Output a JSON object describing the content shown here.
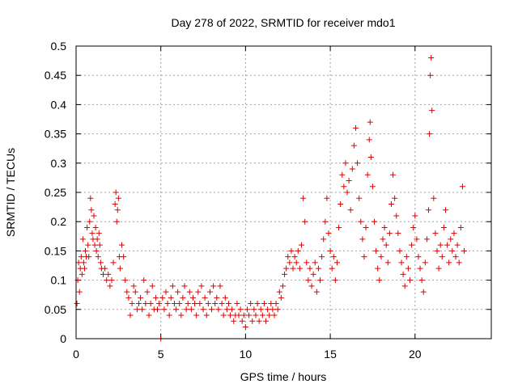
{
  "chart_data": {
    "type": "scatter",
    "title": "Day 278 of 2022, SRMTID for receiver mdo1",
    "xlabel": "GPS time / hours",
    "ylabel": "SRMTID / TECUs",
    "xlim": [
      0,
      24.5
    ],
    "ylim": [
      0,
      0.5
    ],
    "xticks": [
      0,
      5,
      10,
      15,
      20
    ],
    "xtick_labels": [
      "0",
      "5",
      "10",
      "15",
      "20"
    ],
    "yticks": [
      0,
      0.05,
      0.1,
      0.15,
      0.2,
      0.25,
      0.3,
      0.35,
      0.4,
      0.45,
      0.5
    ],
    "ytick_labels": [
      "0",
      "0.05",
      "0.1",
      "0.15",
      "0.2",
      "0.25",
      "0.3",
      "0.35",
      "0.4",
      "0.45",
      "0.5"
    ],
    "grid": true,
    "marker": "+",
    "color": "#e00000",
    "series": [
      {
        "name": "SRMTID",
        "points": [
          [
            0.05,
            0.06
          ],
          [
            0.1,
            0.1
          ],
          [
            0.15,
            0.13
          ],
          [
            0.2,
            0.08
          ],
          [
            0.25,
            0.12
          ],
          [
            0.3,
            0.14
          ],
          [
            0.35,
            0.11
          ],
          [
            0.4,
            0.17
          ],
          [
            0.45,
            0.13
          ],
          [
            0.5,
            0.12
          ],
          [
            0.55,
            0.15
          ],
          [
            0.6,
            0.14
          ],
          [
            0.65,
            0.19
          ],
          [
            0.7,
            0.16
          ],
          [
            0.75,
            0.14
          ],
          [
            0.8,
            0.2
          ],
          [
            0.85,
            0.24
          ],
          [
            0.9,
            0.22
          ],
          [
            0.95,
            0.18
          ],
          [
            1.0,
            0.17
          ],
          [
            1.05,
            0.21
          ],
          [
            1.1,
            0.16
          ],
          [
            1.15,
            0.19
          ],
          [
            1.2,
            0.15
          ],
          [
            1.25,
            0.17
          ],
          [
            1.3,
            0.14
          ],
          [
            1.35,
            0.18
          ],
          [
            1.4,
            0.16
          ],
          [
            1.45,
            0.13
          ],
          [
            1.5,
            0.12
          ],
          [
            1.6,
            0.11
          ],
          [
            1.7,
            0.12
          ],
          [
            1.8,
            0.1
          ],
          [
            1.9,
            0.11
          ],
          [
            2.0,
            0.09
          ],
          [
            2.1,
            0.1
          ],
          [
            2.2,
            0.13
          ],
          [
            2.3,
            0.23
          ],
          [
            2.35,
            0.25
          ],
          [
            2.4,
            0.2
          ],
          [
            2.45,
            0.22
          ],
          [
            2.5,
            0.24
          ],
          [
            2.55,
            0.14
          ],
          [
            2.6,
            0.12
          ],
          [
            2.7,
            0.16
          ],
          [
            2.8,
            0.14
          ],
          [
            2.9,
            0.1
          ],
          [
            3.0,
            0.08
          ],
          [
            3.1,
            0.07
          ],
          [
            3.2,
            0.04
          ],
          [
            3.3,
            0.06
          ],
          [
            3.4,
            0.09
          ],
          [
            3.5,
            0.08
          ],
          [
            3.6,
            0.05
          ],
          [
            3.7,
            0.06
          ],
          [
            3.8,
            0.07
          ],
          [
            3.9,
            0.05
          ],
          [
            4.0,
            0.1
          ],
          [
            4.1,
            0.06
          ],
          [
            4.2,
            0.08
          ],
          [
            4.3,
            0.04
          ],
          [
            4.4,
            0.06
          ],
          [
            4.5,
            0.09
          ],
          [
            4.6,
            0.05
          ],
          [
            4.7,
            0.07
          ],
          [
            4.8,
            0.05
          ],
          [
            4.9,
            0.06
          ],
          [
            5.0,
            0.0
          ],
          [
            5.1,
            0.07
          ],
          [
            5.2,
            0.05
          ],
          [
            5.3,
            0.08
          ],
          [
            5.4,
            0.06
          ],
          [
            5.5,
            0.04
          ],
          [
            5.6,
            0.07
          ],
          [
            5.7,
            0.09
          ],
          [
            5.8,
            0.06
          ],
          [
            5.9,
            0.05
          ],
          [
            6.0,
            0.08
          ],
          [
            6.1,
            0.06
          ],
          [
            6.2,
            0.04
          ],
          [
            6.3,
            0.07
          ],
          [
            6.4,
            0.09
          ],
          [
            6.5,
            0.05
          ],
          [
            6.6,
            0.06
          ],
          [
            6.7,
            0.08
          ],
          [
            6.8,
            0.05
          ],
          [
            6.9,
            0.07
          ],
          [
            7.0,
            0.06
          ],
          [
            7.1,
            0.04
          ],
          [
            7.2,
            0.08
          ],
          [
            7.3,
            0.06
          ],
          [
            7.4,
            0.09
          ],
          [
            7.5,
            0.05
          ],
          [
            7.6,
            0.07
          ],
          [
            7.7,
            0.04
          ],
          [
            7.8,
            0.06
          ],
          [
            7.9,
            0.08
          ],
          [
            8.0,
            0.05
          ],
          [
            8.1,
            0.09
          ],
          [
            8.2,
            0.06
          ],
          [
            8.3,
            0.07
          ],
          [
            8.4,
            0.05
          ],
          [
            8.5,
            0.09
          ],
          [
            8.6,
            0.06
          ],
          [
            8.7,
            0.04
          ],
          [
            8.8,
            0.07
          ],
          [
            8.9,
            0.05
          ],
          [
            9.0,
            0.06
          ],
          [
            9.1,
            0.04
          ],
          [
            9.2,
            0.05
          ],
          [
            9.3,
            0.03
          ],
          [
            9.4,
            0.04
          ],
          [
            9.5,
            0.06
          ],
          [
            9.6,
            0.04
          ],
          [
            9.7,
            0.05
          ],
          [
            9.8,
            0.03
          ],
          [
            9.9,
            0.04
          ],
          [
            10.0,
            0.02
          ],
          [
            10.1,
            0.05
          ],
          [
            10.2,
            0.04
          ],
          [
            10.3,
            0.06
          ],
          [
            10.4,
            0.03
          ],
          [
            10.5,
            0.05
          ],
          [
            10.6,
            0.04
          ],
          [
            10.7,
            0.06
          ],
          [
            10.8,
            0.03
          ],
          [
            10.9,
            0.05
          ],
          [
            11.0,
            0.04
          ],
          [
            11.1,
            0.06
          ],
          [
            11.2,
            0.03
          ],
          [
            11.3,
            0.05
          ],
          [
            11.4,
            0.04
          ],
          [
            11.5,
            0.06
          ],
          [
            11.6,
            0.05
          ],
          [
            11.7,
            0.04
          ],
          [
            11.8,
            0.06
          ],
          [
            11.9,
            0.05
          ],
          [
            12.0,
            0.08
          ],
          [
            12.1,
            0.07
          ],
          [
            12.2,
            0.09
          ],
          [
            12.3,
            0.11
          ],
          [
            12.4,
            0.12
          ],
          [
            12.5,
            0.14
          ],
          [
            12.6,
            0.13
          ],
          [
            12.7,
            0.15
          ],
          [
            12.8,
            0.12
          ],
          [
            12.9,
            0.14
          ],
          [
            13.0,
            0.13
          ],
          [
            13.1,
            0.15
          ],
          [
            13.2,
            0.12
          ],
          [
            13.3,
            0.16
          ],
          [
            13.4,
            0.24
          ],
          [
            13.5,
            0.2
          ],
          [
            13.6,
            0.13
          ],
          [
            13.7,
            0.1
          ],
          [
            13.8,
            0.12
          ],
          [
            13.9,
            0.09
          ],
          [
            14.0,
            0.11
          ],
          [
            14.1,
            0.13
          ],
          [
            14.2,
            0.08
          ],
          [
            14.3,
            0.12
          ],
          [
            14.4,
            0.1
          ],
          [
            14.5,
            0.14
          ],
          [
            14.6,
            0.17
          ],
          [
            14.7,
            0.2
          ],
          [
            14.8,
            0.24
          ],
          [
            14.9,
            0.18
          ],
          [
            15.0,
            0.15
          ],
          [
            15.1,
            0.12
          ],
          [
            15.2,
            0.14
          ],
          [
            15.3,
            0.1
          ],
          [
            15.4,
            0.13
          ],
          [
            15.5,
            0.19
          ],
          [
            15.6,
            0.23
          ],
          [
            15.7,
            0.28
          ],
          [
            15.8,
            0.26
          ],
          [
            15.9,
            0.3
          ],
          [
            16.0,
            0.25
          ],
          [
            16.1,
            0.27
          ],
          [
            16.2,
            0.22
          ],
          [
            16.3,
            0.29
          ],
          [
            16.4,
            0.33
          ],
          [
            16.5,
            0.36
          ],
          [
            16.6,
            0.3
          ],
          [
            16.7,
            0.24
          ],
          [
            16.8,
            0.2
          ],
          [
            16.9,
            0.17
          ],
          [
            17.0,
            0.14
          ],
          [
            17.1,
            0.19
          ],
          [
            17.2,
            0.28
          ],
          [
            17.3,
            0.34
          ],
          [
            17.35,
            0.37
          ],
          [
            17.4,
            0.31
          ],
          [
            17.5,
            0.26
          ],
          [
            17.6,
            0.2
          ],
          [
            17.7,
            0.15
          ],
          [
            17.8,
            0.12
          ],
          [
            17.9,
            0.1
          ],
          [
            18.0,
            0.14
          ],
          [
            18.1,
            0.17
          ],
          [
            18.2,
            0.19
          ],
          [
            18.3,
            0.16
          ],
          [
            18.4,
            0.13
          ],
          [
            18.5,
            0.18
          ],
          [
            18.6,
            0.23
          ],
          [
            18.7,
            0.28
          ],
          [
            18.8,
            0.24
          ],
          [
            18.9,
            0.21
          ],
          [
            19.0,
            0.18
          ],
          [
            19.1,
            0.15
          ],
          [
            19.2,
            0.13
          ],
          [
            19.3,
            0.11
          ],
          [
            19.4,
            0.09
          ],
          [
            19.5,
            0.14
          ],
          [
            19.6,
            0.12
          ],
          [
            19.7,
            0.1
          ],
          [
            19.8,
            0.16
          ],
          [
            19.9,
            0.19
          ],
          [
            20.0,
            0.21
          ],
          [
            20.1,
            0.17
          ],
          [
            20.2,
            0.14
          ],
          [
            20.3,
            0.12
          ],
          [
            20.4,
            0.1
          ],
          [
            20.5,
            0.08
          ],
          [
            20.6,
            0.13
          ],
          [
            20.7,
            0.17
          ],
          [
            20.8,
            0.22
          ],
          [
            20.85,
            0.35
          ],
          [
            20.9,
            0.45
          ],
          [
            20.95,
            0.48
          ],
          [
            21.0,
            0.39
          ],
          [
            21.1,
            0.24
          ],
          [
            21.2,
            0.18
          ],
          [
            21.3,
            0.15
          ],
          [
            21.4,
            0.12
          ],
          [
            21.5,
            0.16
          ],
          [
            21.6,
            0.14
          ],
          [
            21.7,
            0.19
          ],
          [
            21.8,
            0.22
          ],
          [
            21.9,
            0.16
          ],
          [
            22.0,
            0.13
          ],
          [
            22.1,
            0.17
          ],
          [
            22.2,
            0.15
          ],
          [
            22.3,
            0.18
          ],
          [
            22.4,
            0.14
          ],
          [
            22.5,
            0.16
          ],
          [
            22.6,
            0.13
          ],
          [
            22.7,
            0.19
          ],
          [
            22.8,
            0.26
          ],
          [
            22.9,
            0.15
          ]
        ]
      }
    ]
  }
}
